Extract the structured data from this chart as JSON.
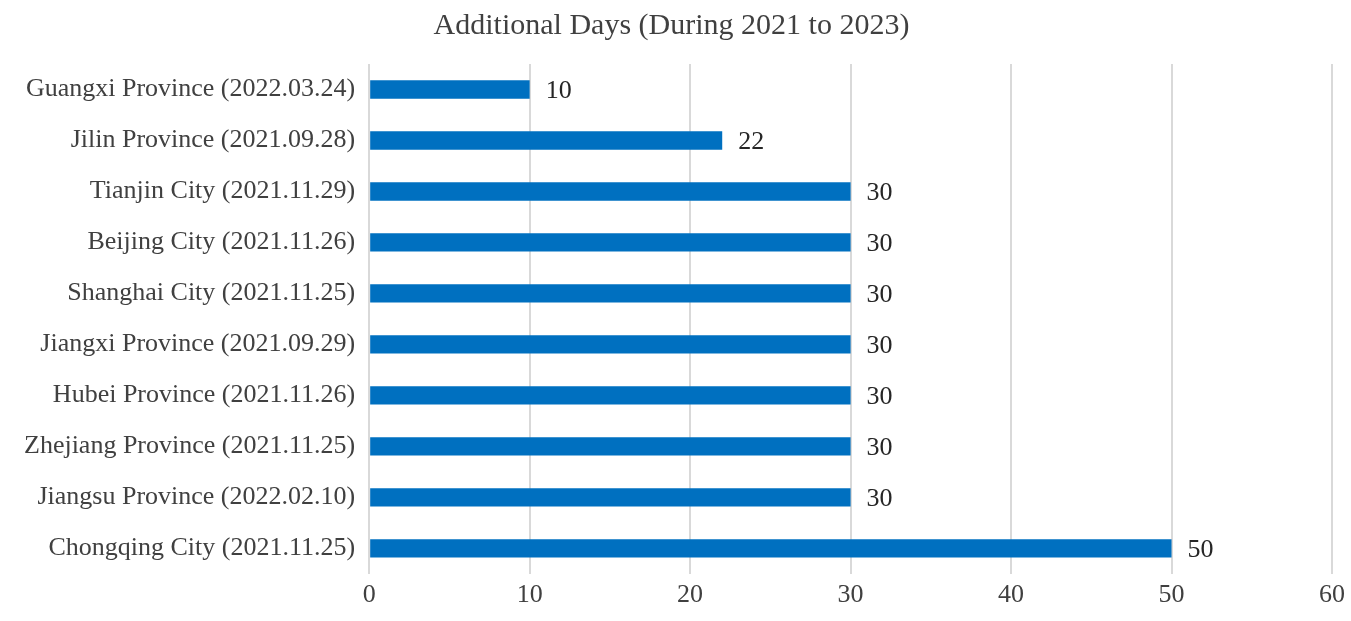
{
  "chart_data": {
    "type": "bar",
    "orientation": "horizontal",
    "title": "Additional Days (During 2021 to 2023)",
    "categories": [
      "Guangxi Province (2022.03.24)",
      "Jilin Province (2021.09.28)",
      "Tianjin City (2021.11.29)",
      "Beijing City (2021.11.26)",
      "Shanghai City (2021.11.25)",
      "Jiangxi Province (2021.09.29)",
      "Hubei Province (2021.11.26)",
      "Zhejiang Province (2021.11.25)",
      "Jiangsu Province (2022.02.10)",
      "Chongqing City (2021.11.25)"
    ],
    "values": [
      10,
      22,
      30,
      30,
      30,
      30,
      30,
      30,
      30,
      50
    ],
    "color": "#0070c0",
    "xlim": [
      0,
      60
    ],
    "xticks": [
      0,
      10,
      20,
      30,
      40,
      50,
      60
    ],
    "grid": "x",
    "legend": false,
    "data_labels": true
  }
}
